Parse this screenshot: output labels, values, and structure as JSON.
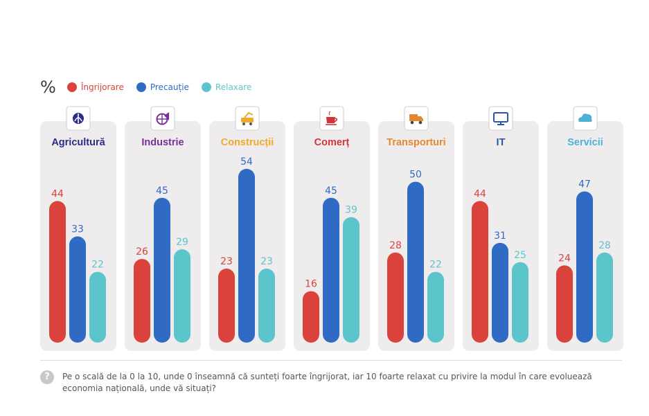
{
  "legend": {
    "unit": "%",
    "items": [
      {
        "label": "Îngrijorare",
        "color": "#d9433b"
      },
      {
        "label": "Precauție",
        "color": "#2f6bc4"
      },
      {
        "label": "Relaxare",
        "color": "#5cc5cb"
      }
    ]
  },
  "chart_data": {
    "type": "bar",
    "categories": [
      "Agricultură",
      "Industrie",
      "Construcții",
      "Comerț",
      "Transporturi",
      "IT",
      "Servicii"
    ],
    "category_colors": [
      "#2c2c8a",
      "#7a2f9a",
      "#f1a92a",
      "#d2343a",
      "#e5892f",
      "#2b55a8",
      "#4fb0d4"
    ],
    "category_icons": [
      "wheat-icon",
      "globe-megaphone-icon",
      "construction-vehicle-icon",
      "coffee-cup-icon",
      "truck-icon",
      "monitor-icon",
      "cloud-icon"
    ],
    "series": [
      {
        "name": "Îngrijorare",
        "values": [
          44,
          26,
          23,
          16,
          28,
          44,
          24
        ],
        "color": "#d9433b"
      },
      {
        "name": "Precauție",
        "values": [
          33,
          45,
          54,
          45,
          50,
          31,
          47
        ],
        "color": "#2f6bc4"
      },
      {
        "name": "Relaxare",
        "values": [
          22,
          29,
          23,
          39,
          22,
          25,
          28
        ],
        "color": "#5cc5cb"
      }
    ],
    "ylim": [
      0,
      54
    ]
  },
  "footer": {
    "question_icon": "question-icon",
    "question_mark": "?",
    "question": "Pe o scală de la 0 la 10, unde 0 înseamnă că sunteți foarte îngrijorat, iar 10 foarte relaxat cu privire la modul în care evoluează economia națională, unde vă situați?"
  }
}
